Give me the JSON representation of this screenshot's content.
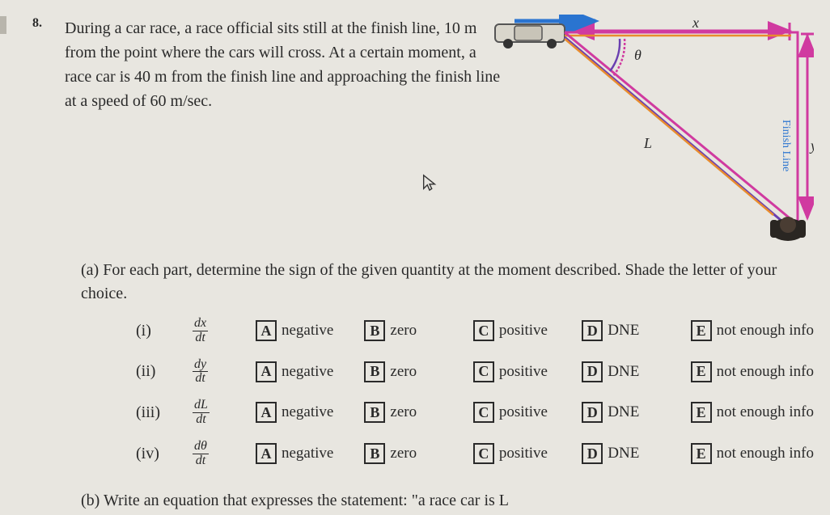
{
  "problem": {
    "number": "8.",
    "text": "During a car race, a race official sits still at the finish line, 10 m from the point where the cars will cross. At a certain moment, a race car is 40 m from the finish line and approaching the finish line at a speed of 60 m/sec."
  },
  "diagram": {
    "x_label": "x",
    "theta_label": "θ",
    "L_label": "L",
    "y_label": "y",
    "finish_line_label": "Finish Line",
    "colors": {
      "arrow_blue": "#2a74d0",
      "line_purple": "#6a3fb0",
      "line_magenta": "#d03aa0",
      "line_orange": "#e88c2e",
      "car_body": "#d9d6cc",
      "car_outline": "#555555",
      "official_body": "#2a2622",
      "official_head": "#4a3d33"
    }
  },
  "part_a": {
    "marker": "(a)",
    "text": "For each part, determine the sign of the given quantity at the moment described. Shade the letter of your choice.",
    "rows": [
      {
        "roman": "(i)",
        "num": "dx",
        "den": "dt"
      },
      {
        "roman": "(ii)",
        "num": "dy",
        "den": "dt"
      },
      {
        "roman": "(iii)",
        "num": "dL",
        "den": "dt"
      },
      {
        "roman": "(iv)",
        "num": "dθ",
        "den": "dt"
      }
    ],
    "choices": [
      {
        "letter": "A",
        "label": "negative"
      },
      {
        "letter": "B",
        "label": "zero"
      },
      {
        "letter": "C",
        "label": "positive"
      },
      {
        "letter": "D",
        "label": "DNE"
      },
      {
        "letter": "E",
        "label": "not enough info"
      }
    ]
  },
  "part_b": {
    "marker": "(b)",
    "text": "Write an equation that expresses the statement: \"a race car is L"
  }
}
